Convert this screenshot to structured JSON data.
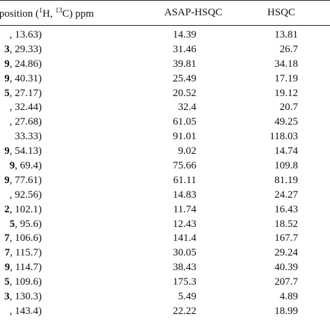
{
  "header": {
    "position_prefix": "t position (",
    "sup_h": "1",
    "h_label": "H, ",
    "sup_c": "13",
    "c_label": "C) ppm",
    "asap_hsqc": "ASAP-HSQC",
    "hsqc": "HSQC"
  },
  "rows": [
    {
      "lead": "",
      "pos": ", 13.63)",
      "asap": "14.39",
      "hsqc": "13.81"
    },
    {
      "lead": "3",
      "pos": ", 29.33)",
      "asap": "31.46",
      "hsqc": "26.7"
    },
    {
      "lead": "9",
      "pos": ", 24.86)",
      "asap": "39.81",
      "hsqc": "34.18"
    },
    {
      "lead": "9",
      "pos": ", 40.31)",
      "asap": "25.49",
      "hsqc": "17.19"
    },
    {
      "lead": "5",
      "pos": ", 27.17)",
      "asap": "20.52",
      "hsqc": "19.12"
    },
    {
      "lead": "",
      "pos": ", 32.44)",
      "asap": "32.4",
      "hsqc": "20.7"
    },
    {
      "lead": "",
      "pos": ", 27.68)",
      "asap": "61.05",
      "hsqc": "49.25"
    },
    {
      "lead": "",
      "pos": " 33.33)",
      "asap": "91.01",
      "hsqc": "118.03"
    },
    {
      "lead": "9",
      "pos": ", 54.13)",
      "asap": "9.02",
      "hsqc": "14.74"
    },
    {
      "lead": "9",
      "pos": ", 69.4)",
      "asap": "75.66",
      "hsqc": "109.8"
    },
    {
      "lead": "9",
      "pos": ", 77.61)",
      "asap": "61.11",
      "hsqc": "81.19"
    },
    {
      "lead": "",
      "pos": ", 92.56)",
      "asap": "14.83",
      "hsqc": "24.27"
    },
    {
      "lead": "2",
      "pos": ", 102.1)",
      "asap": "11.74",
      "hsqc": "16.43"
    },
    {
      "lead": "5",
      "pos": ", 95.6)",
      "asap": "12.43",
      "hsqc": "18.52"
    },
    {
      "lead": "7",
      "pos": ", 106.6)",
      "asap": "141.4",
      "hsqc": "167.7"
    },
    {
      "lead": "7",
      "pos": ", 115.7)",
      "asap": "30.05",
      "hsqc": "29.24"
    },
    {
      "lead": "9",
      "pos": ", 114.7)",
      "asap": "38.43",
      "hsqc": "40.39"
    },
    {
      "lead": "5",
      "pos": ", 109.6)",
      "asap": "175.3",
      "hsqc": "207.7"
    },
    {
      "lead": "3",
      "pos": ", 130.3)",
      "asap": "5.49",
      "hsqc": "4.89"
    },
    {
      "lead": "",
      "pos": ", 143.4)",
      "asap": "22.22",
      "hsqc": "18.99"
    }
  ]
}
